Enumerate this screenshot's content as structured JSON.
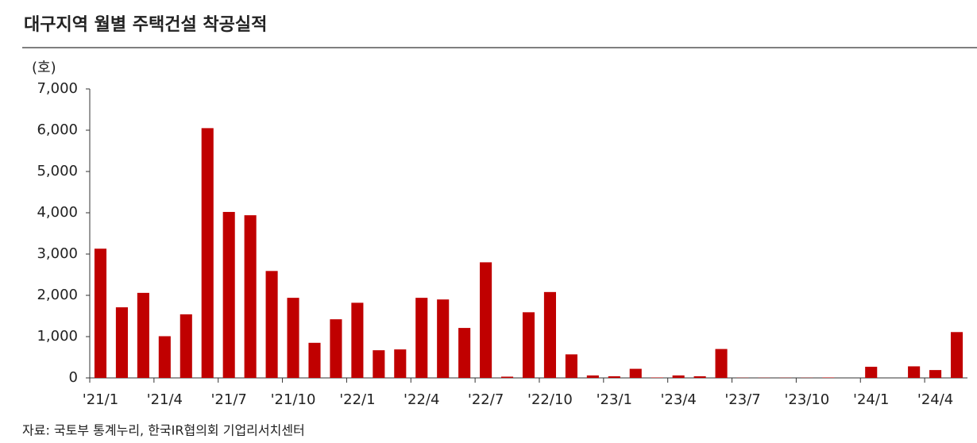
{
  "chart_data": {
    "type": "bar",
    "title": "대구지역 월별 주택건설 착공실적",
    "unit_label": "(호)",
    "source": "자료: 국토부 통계누리, 한국IR협의회 기업리서치센터",
    "categories": [
      "'21/1",
      null,
      null,
      "'21/4",
      null,
      null,
      "'21/7",
      null,
      null,
      "'21/10",
      null,
      null,
      "'22/1",
      null,
      null,
      "'22/4",
      null,
      null,
      "'22/7",
      null,
      null,
      "'22/10",
      null,
      null,
      "'23/1",
      null,
      null,
      "'23/4",
      null,
      null,
      "'23/7",
      null,
      null,
      "'23/10",
      null,
      null,
      "'24/1",
      null,
      null,
      "'24/4",
      null
    ],
    "values": [
      3130,
      1710,
      2060,
      1010,
      1540,
      6050,
      4020,
      3940,
      2590,
      1940,
      850,
      1420,
      1820,
      670,
      690,
      1940,
      1900,
      1210,
      2800,
      30,
      1590,
      2080,
      570,
      60,
      40,
      220,
      10,
      60,
      40,
      700,
      5,
      5,
      5,
      5,
      10,
      0,
      270,
      0,
      280,
      190,
      1110
    ],
    "color": "#c00000",
    "ylim": [
      0,
      7000
    ],
    "yticks": [
      0,
      {
        "value": 1000,
        "label": "1,000"
      },
      {
        "value": 2000,
        "label": "2,000"
      },
      {
        "value": 3000,
        "label": "3,000"
      },
      {
        "value": 4000,
        "label": "4,000"
      },
      {
        "value": 5000,
        "label": "5,000"
      },
      {
        "value": 6000,
        "label": "6,000"
      },
      {
        "value": 7000,
        "label": "7,000"
      }
    ],
    "grid": false
  }
}
